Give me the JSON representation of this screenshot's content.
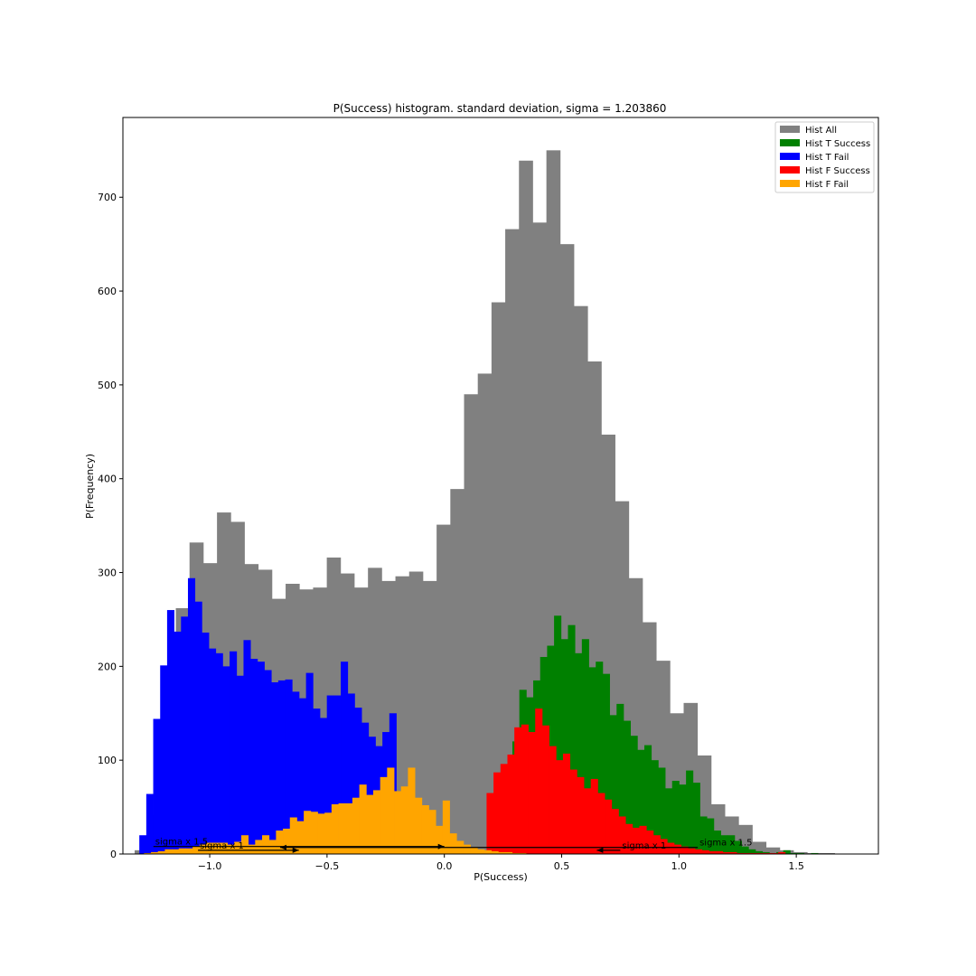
{
  "chart_data": {
    "type": "bar",
    "title": "P(Success) histogram. standard deviation, sigma = 1.203860",
    "xlabel": "P(Success)",
    "ylabel": "P(Frequency)",
    "xlim": [
      -1.37,
      1.85
    ],
    "ylim": [
      0,
      785
    ],
    "xticks": [
      {
        "value": -1.0,
        "label": "−1.0"
      },
      {
        "value": -0.5,
        "label": "−0.5"
      },
      {
        "value": 0.0,
        "label": "0.0"
      },
      {
        "value": 0.5,
        "label": "0.5"
      },
      {
        "value": 1.0,
        "label": "1.0"
      },
      {
        "value": 1.5,
        "label": "1.5"
      }
    ],
    "yticks": [
      {
        "value": 0,
        "label": "0"
      },
      {
        "value": 100,
        "label": "100"
      },
      {
        "value": 200,
        "label": "200"
      },
      {
        "value": 300,
        "label": "300"
      },
      {
        "value": 400,
        "label": "400"
      },
      {
        "value": 500,
        "label": "500"
      },
      {
        "value": 600,
        "label": "600"
      },
      {
        "value": 700,
        "label": "700"
      }
    ],
    "legend_position": "top-right",
    "series": [
      {
        "name": "Hist All",
        "color": "#808080",
        "bin_start": -1.32,
        "bin_width": 0.0585,
        "values": [
          4,
          42,
          156,
          262,
          332,
          310,
          364,
          354,
          309,
          303,
          272,
          288,
          282,
          284,
          316,
          299,
          284,
          305,
          291,
          296,
          301,
          291,
          351,
          389,
          490,
          512,
          588,
          666,
          739,
          673,
          750,
          650,
          584,
          525,
          447,
          376,
          294,
          247,
          206,
          150,
          161,
          105,
          53,
          40,
          31,
          13,
          7,
          4,
          2,
          1,
          1
        ]
      },
      {
        "name": "Hist T Success",
        "color": "#008000",
        "bin_start": 0.29,
        "bin_width": 0.0296,
        "values": [
          120,
          175,
          167,
          185,
          210,
          222,
          254,
          229,
          244,
          214,
          229,
          199,
          205,
          192,
          148,
          160,
          142,
          126,
          111,
          116,
          100,
          92,
          70,
          78,
          74,
          89,
          76,
          40,
          38,
          25,
          20,
          20,
          14,
          8,
          5,
          3,
          2,
          1,
          2,
          4,
          1,
          1,
          0,
          1
        ]
      },
      {
        "name": "Hist T Fail",
        "color": "#0000ff",
        "bin_start": -1.3,
        "bin_width": 0.0296,
        "values": [
          20,
          64,
          144,
          201,
          260,
          237,
          253,
          294,
          269,
          236,
          219,
          214,
          200,
          216,
          190,
          228,
          208,
          205,
          196,
          183,
          185,
          186,
          173,
          166,
          193,
          155,
          145,
          169,
          169,
          205,
          171,
          156,
          140,
          125,
          115,
          130,
          150
        ]
      },
      {
        "name": "Hist F Success",
        "color": "#ff0000",
        "bin_start": 0.18,
        "bin_width": 0.0296,
        "values": [
          65,
          87,
          96,
          106,
          135,
          138,
          130,
          155,
          137,
          115,
          100,
          107,
          90,
          82,
          70,
          80,
          65,
          58,
          48,
          40,
          32,
          28,
          30,
          25,
          20,
          16,
          12,
          10,
          8,
          6,
          5,
          4,
          3,
          3,
          2,
          2,
          1,
          1,
          1,
          1,
          1,
          1,
          2
        ]
      },
      {
        "name": "Hist F Fail",
        "color": "#ffa500",
        "bin_start": -1.28,
        "bin_width": 0.0296,
        "values": [
          1,
          2,
          3,
          5,
          5,
          6,
          6,
          8,
          10,
          12,
          12,
          12,
          10,
          13,
          20,
          10,
          15,
          20,
          15,
          25,
          27,
          39,
          35,
          46,
          45,
          43,
          44,
          53,
          54,
          54,
          60,
          74,
          63,
          68,
          82,
          92,
          67,
          72,
          92,
          60,
          52,
          47,
          30,
          57,
          22,
          14,
          10,
          7,
          5,
          4,
          3,
          2,
          2,
          1,
          1
        ]
      }
    ],
    "annotations": [
      {
        "text": "sigma x 1.5",
        "x_start": -1.24,
        "x_end": 0.0,
        "y": 8
      },
      {
        "text": "sigma x 1",
        "x_start": -1.05,
        "x_end": -0.62,
        "y": 4
      },
      {
        "text": "sigma x 1",
        "x_start": 0.75,
        "x_end": 0.65,
        "y": 4
      },
      {
        "text": "sigma x 1.5",
        "x_start": 1.08,
        "x_end": -0.7,
        "y": 7
      }
    ]
  }
}
